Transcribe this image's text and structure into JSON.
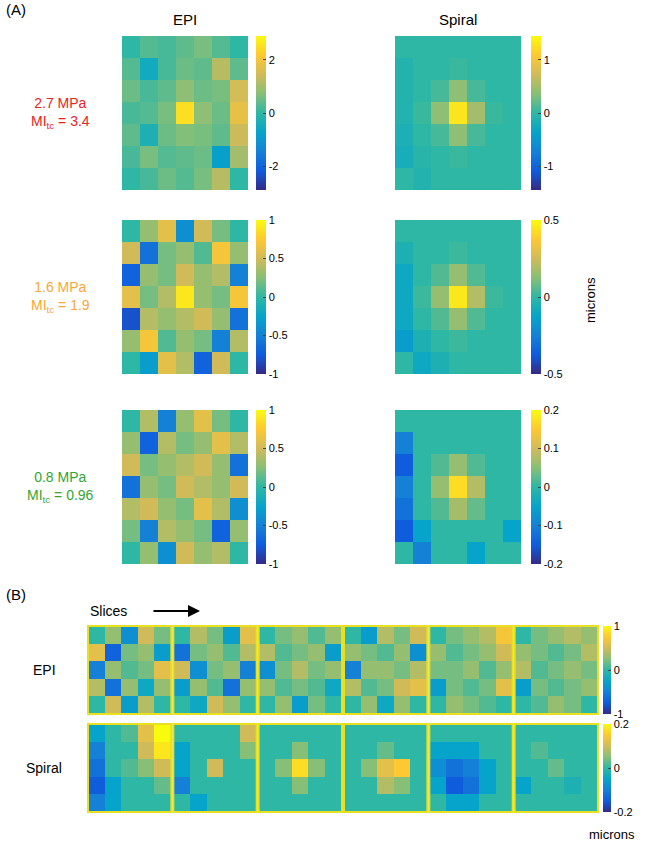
{
  "panel_a": {
    "label": "(A)",
    "columns": [
      "EPI",
      "Spiral"
    ],
    "unit": "microns",
    "rows": [
      {
        "pressure": "2.7 MPa",
        "index": "MI",
        "index_sub": "tc",
        "index_value": "= 3.4",
        "color": "#e8231f"
      },
      {
        "pressure": "1.6 MPa",
        "index": "MI",
        "index_sub": "tc",
        "index_value": "= 1.9",
        "color": "#f5a83a"
      },
      {
        "pressure": "0.8 MPa",
        "index": "MI",
        "index_sub": "tc",
        "index_value": "= 0.96",
        "color": "#33a532"
      }
    ]
  },
  "panel_b": {
    "label": "(B)",
    "axis_label": "Slices",
    "unit": "microns"
  },
  "chart_data": [
    {
      "type": "heatmap",
      "color": "parula",
      "tick_labels": false,
      "zlim": [
        -2.9,
        2.9
      ],
      "zticks": [
        -2,
        0,
        2
      ],
      "z": [
        [
          0,
          0.3,
          0.2,
          0.4,
          0.6,
          0.3,
          0
        ],
        [
          0.3,
          -0.5,
          0.2,
          0.5,
          0.4,
          1.2,
          0.4
        ],
        [
          0.5,
          0.2,
          0.4,
          0.8,
          0.5,
          0.6,
          1.5
        ],
        [
          0.2,
          0.3,
          0.6,
          2.5,
          0.8,
          0.5,
          1.8
        ],
        [
          0.4,
          -0.3,
          0.5,
          0.7,
          0.6,
          0.4,
          1.4
        ],
        [
          0.2,
          0.6,
          0.3,
          0.4,
          0.5,
          -0.8,
          1.0
        ],
        [
          0,
          0.2,
          0.5,
          0.3,
          0.6,
          1.2,
          0
        ]
      ]
    },
    {
      "type": "heatmap",
      "color": "parula",
      "tick_labels": false,
      "zlim": [
        -1.45,
        1.45
      ],
      "zticks": [
        -1,
        0,
        1
      ],
      "z": [
        [
          0,
          0,
          0,
          0,
          0,
          0,
          0
        ],
        [
          -0.1,
          0,
          0,
          0.05,
          0,
          0,
          0
        ],
        [
          -0.1,
          0,
          0.1,
          0.4,
          0.1,
          0,
          0
        ],
        [
          -0.1,
          0.05,
          0.4,
          1.3,
          0.5,
          0.05,
          0
        ],
        [
          -0.15,
          0,
          0.1,
          0.4,
          0.1,
          0,
          0
        ],
        [
          -0.2,
          -0.05,
          0,
          0.05,
          0,
          0,
          0
        ],
        [
          0,
          -0.1,
          0,
          0,
          0,
          0,
          0
        ]
      ]
    },
    {
      "type": "heatmap",
      "color": "parula",
      "tick_labels": false,
      "zlim": [
        -1,
        1
      ],
      "zticks": [
        -1,
        -0.5,
        0,
        0.5,
        1
      ],
      "z": [
        [
          0,
          0.3,
          0.6,
          -0.4,
          0.5,
          0.2,
          0
        ],
        [
          0.5,
          -0.6,
          0.2,
          0.3,
          0.1,
          0.7,
          0.3
        ],
        [
          -0.7,
          0.3,
          0.2,
          0.5,
          0.3,
          0.4,
          -0.5
        ],
        [
          0.6,
          0.2,
          0.4,
          0.9,
          0.3,
          0.2,
          0.7
        ],
        [
          -0.8,
          0.4,
          0.3,
          0.4,
          0.5,
          0.3,
          -0.6
        ],
        [
          0.3,
          0.7,
          0.1,
          0.3,
          0.2,
          -0.5,
          0.4
        ],
        [
          0,
          -0.3,
          0.6,
          0.4,
          -0.7,
          0.5,
          0
        ]
      ]
    },
    {
      "type": "heatmap",
      "color": "parula",
      "tick_labels": false,
      "zlim": [
        -0.5,
        0.5
      ],
      "zticks": [
        -0.5,
        0,
        0.5
      ],
      "z": [
        [
          0,
          0,
          0,
          0,
          0,
          0,
          0
        ],
        [
          -0.05,
          0,
          0,
          0.02,
          0,
          0,
          0
        ],
        [
          -0.1,
          0,
          0.05,
          0.15,
          0.05,
          0,
          0
        ],
        [
          -0.1,
          0.02,
          0.15,
          0.45,
          0.2,
          0.02,
          0
        ],
        [
          -0.1,
          0,
          0.05,
          0.15,
          0.05,
          0,
          0
        ],
        [
          -0.15,
          -0.05,
          0,
          0.02,
          0,
          0,
          0
        ],
        [
          0,
          -0.1,
          -0.05,
          0,
          0,
          0,
          0
        ]
      ]
    },
    {
      "type": "heatmap",
      "color": "parula",
      "tick_labels": false,
      "zlim": [
        -1,
        1
      ],
      "zticks": [
        -1,
        -0.5,
        0,
        0.5,
        1
      ],
      "z": [
        [
          0,
          0.4,
          -0.5,
          0.3,
          0.6,
          0.2,
          0
        ],
        [
          0.3,
          -0.7,
          0.4,
          0.2,
          0.3,
          0.6,
          0.4
        ],
        [
          0.5,
          0.2,
          0.3,
          0.4,
          0.5,
          0.3,
          -0.6
        ],
        [
          -0.6,
          0.3,
          0.2,
          0.5,
          0.4,
          0.3,
          0.5
        ],
        [
          0.4,
          0.5,
          0.3,
          0.2,
          0.6,
          0.4,
          -0.4
        ],
        [
          0.2,
          -0.5,
          0.4,
          0.3,
          0.2,
          -0.7,
          0.3
        ],
        [
          0,
          0.3,
          -0.4,
          0.5,
          0.3,
          0.4,
          0
        ]
      ]
    },
    {
      "type": "heatmap",
      "color": "parula",
      "tick_labels": false,
      "zlim": [
        -0.2,
        0.2
      ],
      "zticks": [
        -0.2,
        -0.1,
        0,
        0.1,
        0.2
      ],
      "z": [
        [
          0,
          0,
          0,
          0,
          0,
          0,
          0
        ],
        [
          -0.1,
          0,
          0,
          0,
          0,
          0,
          0
        ],
        [
          -0.15,
          0,
          0.02,
          0.06,
          0.02,
          0,
          0
        ],
        [
          -0.1,
          0,
          0.06,
          0.17,
          0.08,
          0,
          0
        ],
        [
          -0.12,
          0,
          0.02,
          0.07,
          0.03,
          0,
          0
        ],
        [
          -0.15,
          -0.05,
          0,
          0,
          0,
          0,
          -0.05
        ],
        [
          0,
          -0.1,
          0,
          0,
          -0.05,
          0,
          0
        ]
      ]
    },
    {
      "type": "heatmap",
      "name": "EPI",
      "color": "parula",
      "tick_labels": false,
      "zlim": [
        -1,
        1
      ],
      "zticks": [
        -1,
        0,
        1
      ],
      "slices": [
        [
          [
            0,
            0.3,
            -0.4,
            0.5,
            0.2
          ],
          [
            0.6,
            -0.7,
            0.2,
            0.3,
            -0.3
          ],
          [
            -0.5,
            0.3,
            0.1,
            0.2,
            0.6
          ],
          [
            0.4,
            -0.6,
            0.3,
            -0.2,
            0.3
          ],
          [
            0,
            0.5,
            -0.3,
            0.4,
            0
          ]
        ],
        [
          [
            0,
            0.4,
            0.2,
            -0.3,
            0.6
          ],
          [
            -0.6,
            0.2,
            0.3,
            0.1,
            0.4
          ],
          [
            0.5,
            -0.4,
            0.2,
            0.3,
            -0.5
          ],
          [
            -0.3,
            0.3,
            0.1,
            -0.6,
            0.3
          ],
          [
            0,
            -0.2,
            0.5,
            0.3,
            0
          ]
        ],
        [
          [
            0,
            0.2,
            0.3,
            0.1,
            0.3
          ],
          [
            0.4,
            0.1,
            0.2,
            0.3,
            -0.3
          ],
          [
            -0.4,
            0.2,
            0.4,
            0.2,
            0.3
          ],
          [
            0.3,
            0.1,
            0.2,
            0.1,
            -0.2
          ],
          [
            0,
            0.3,
            -0.3,
            0.2,
            0
          ]
        ],
        [
          [
            0,
            -0.3,
            0.4,
            0.2,
            0.5
          ],
          [
            0.3,
            0.2,
            0.1,
            0.3,
            -0.4
          ],
          [
            -0.5,
            0.3,
            0.3,
            0.2,
            0.4
          ],
          [
            0.4,
            0.1,
            0.2,
            0.5,
            0.6
          ],
          [
            0,
            0.3,
            -0.2,
            0.3,
            0
          ]
        ],
        [
          [
            0,
            0.2,
            0.3,
            0.4,
            0.7
          ],
          [
            0.3,
            0.1,
            0.2,
            0.3,
            0.5
          ],
          [
            0.2,
            0.2,
            0.3,
            0.1,
            0.3
          ],
          [
            -0.3,
            0.2,
            0.1,
            0.2,
            0.6
          ],
          [
            0,
            0.3,
            0.2,
            0.1,
            0
          ]
        ],
        [
          [
            0,
            0.2,
            0.3,
            0.4,
            0.3
          ],
          [
            0.3,
            0.2,
            0.1,
            0.2,
            0.4
          ],
          [
            0.4,
            0.1,
            0.2,
            0.3,
            0.2
          ],
          [
            -0.3,
            0.2,
            0.1,
            0.2,
            0.3
          ],
          [
            0,
            0.1,
            0.3,
            0.2,
            0
          ]
        ]
      ]
    },
    {
      "type": "heatmap",
      "name": "Spiral",
      "color": "parula",
      "tick_labels": false,
      "zlim": [
        -0.2,
        0.2
      ],
      "zticks": [
        -0.2,
        0,
        0.2
      ],
      "slices": [
        [
          [
            -0.05,
            0,
            0.02,
            0.12,
            0.2
          ],
          [
            -0.1,
            0,
            0,
            0.1,
            0.18
          ],
          [
            -0.12,
            0,
            0.02,
            0.05,
            0.1
          ],
          [
            -0.15,
            -0.05,
            0,
            0,
            0.03
          ],
          [
            -0.1,
            -0.05,
            0,
            0,
            0
          ]
        ],
        [
          [
            0,
            0,
            0,
            0,
            0.1
          ],
          [
            -0.05,
            0,
            0,
            0,
            0.05
          ],
          [
            -0.05,
            0,
            0.1,
            0,
            0
          ],
          [
            -0.1,
            0,
            0,
            0,
            0
          ],
          [
            0,
            -0.05,
            0,
            0,
            0
          ]
        ],
        [
          [
            0,
            0,
            0,
            0,
            0
          ],
          [
            0,
            0,
            0.05,
            0,
            0
          ],
          [
            0,
            0.05,
            0.17,
            0.05,
            0
          ],
          [
            0,
            0,
            0.05,
            0,
            0
          ],
          [
            0,
            0,
            0,
            0,
            0
          ]
        ],
        [
          [
            0,
            0,
            0,
            0,
            0
          ],
          [
            0,
            0,
            0.03,
            0,
            0
          ],
          [
            0,
            0.05,
            0.12,
            0.15,
            0
          ],
          [
            0,
            0,
            0.08,
            0.05,
            0
          ],
          [
            0,
            0,
            0,
            0,
            0
          ]
        ],
        [
          [
            0,
            0,
            0,
            0,
            0
          ],
          [
            -0.05,
            -0.05,
            -0.05,
            0,
            0
          ],
          [
            -0.08,
            -0.12,
            -0.1,
            -0.05,
            0
          ],
          [
            -0.05,
            -0.15,
            -0.12,
            -0.05,
            0
          ],
          [
            0,
            -0.05,
            -0.05,
            0,
            0
          ]
        ],
        [
          [
            0,
            0,
            0,
            0,
            0
          ],
          [
            0,
            0.02,
            0,
            0,
            0
          ],
          [
            0,
            0,
            0.03,
            0,
            0
          ],
          [
            -0.05,
            0,
            0,
            -0.02,
            0
          ],
          [
            0,
            0,
            0,
            0,
            0
          ]
        ]
      ]
    }
  ]
}
